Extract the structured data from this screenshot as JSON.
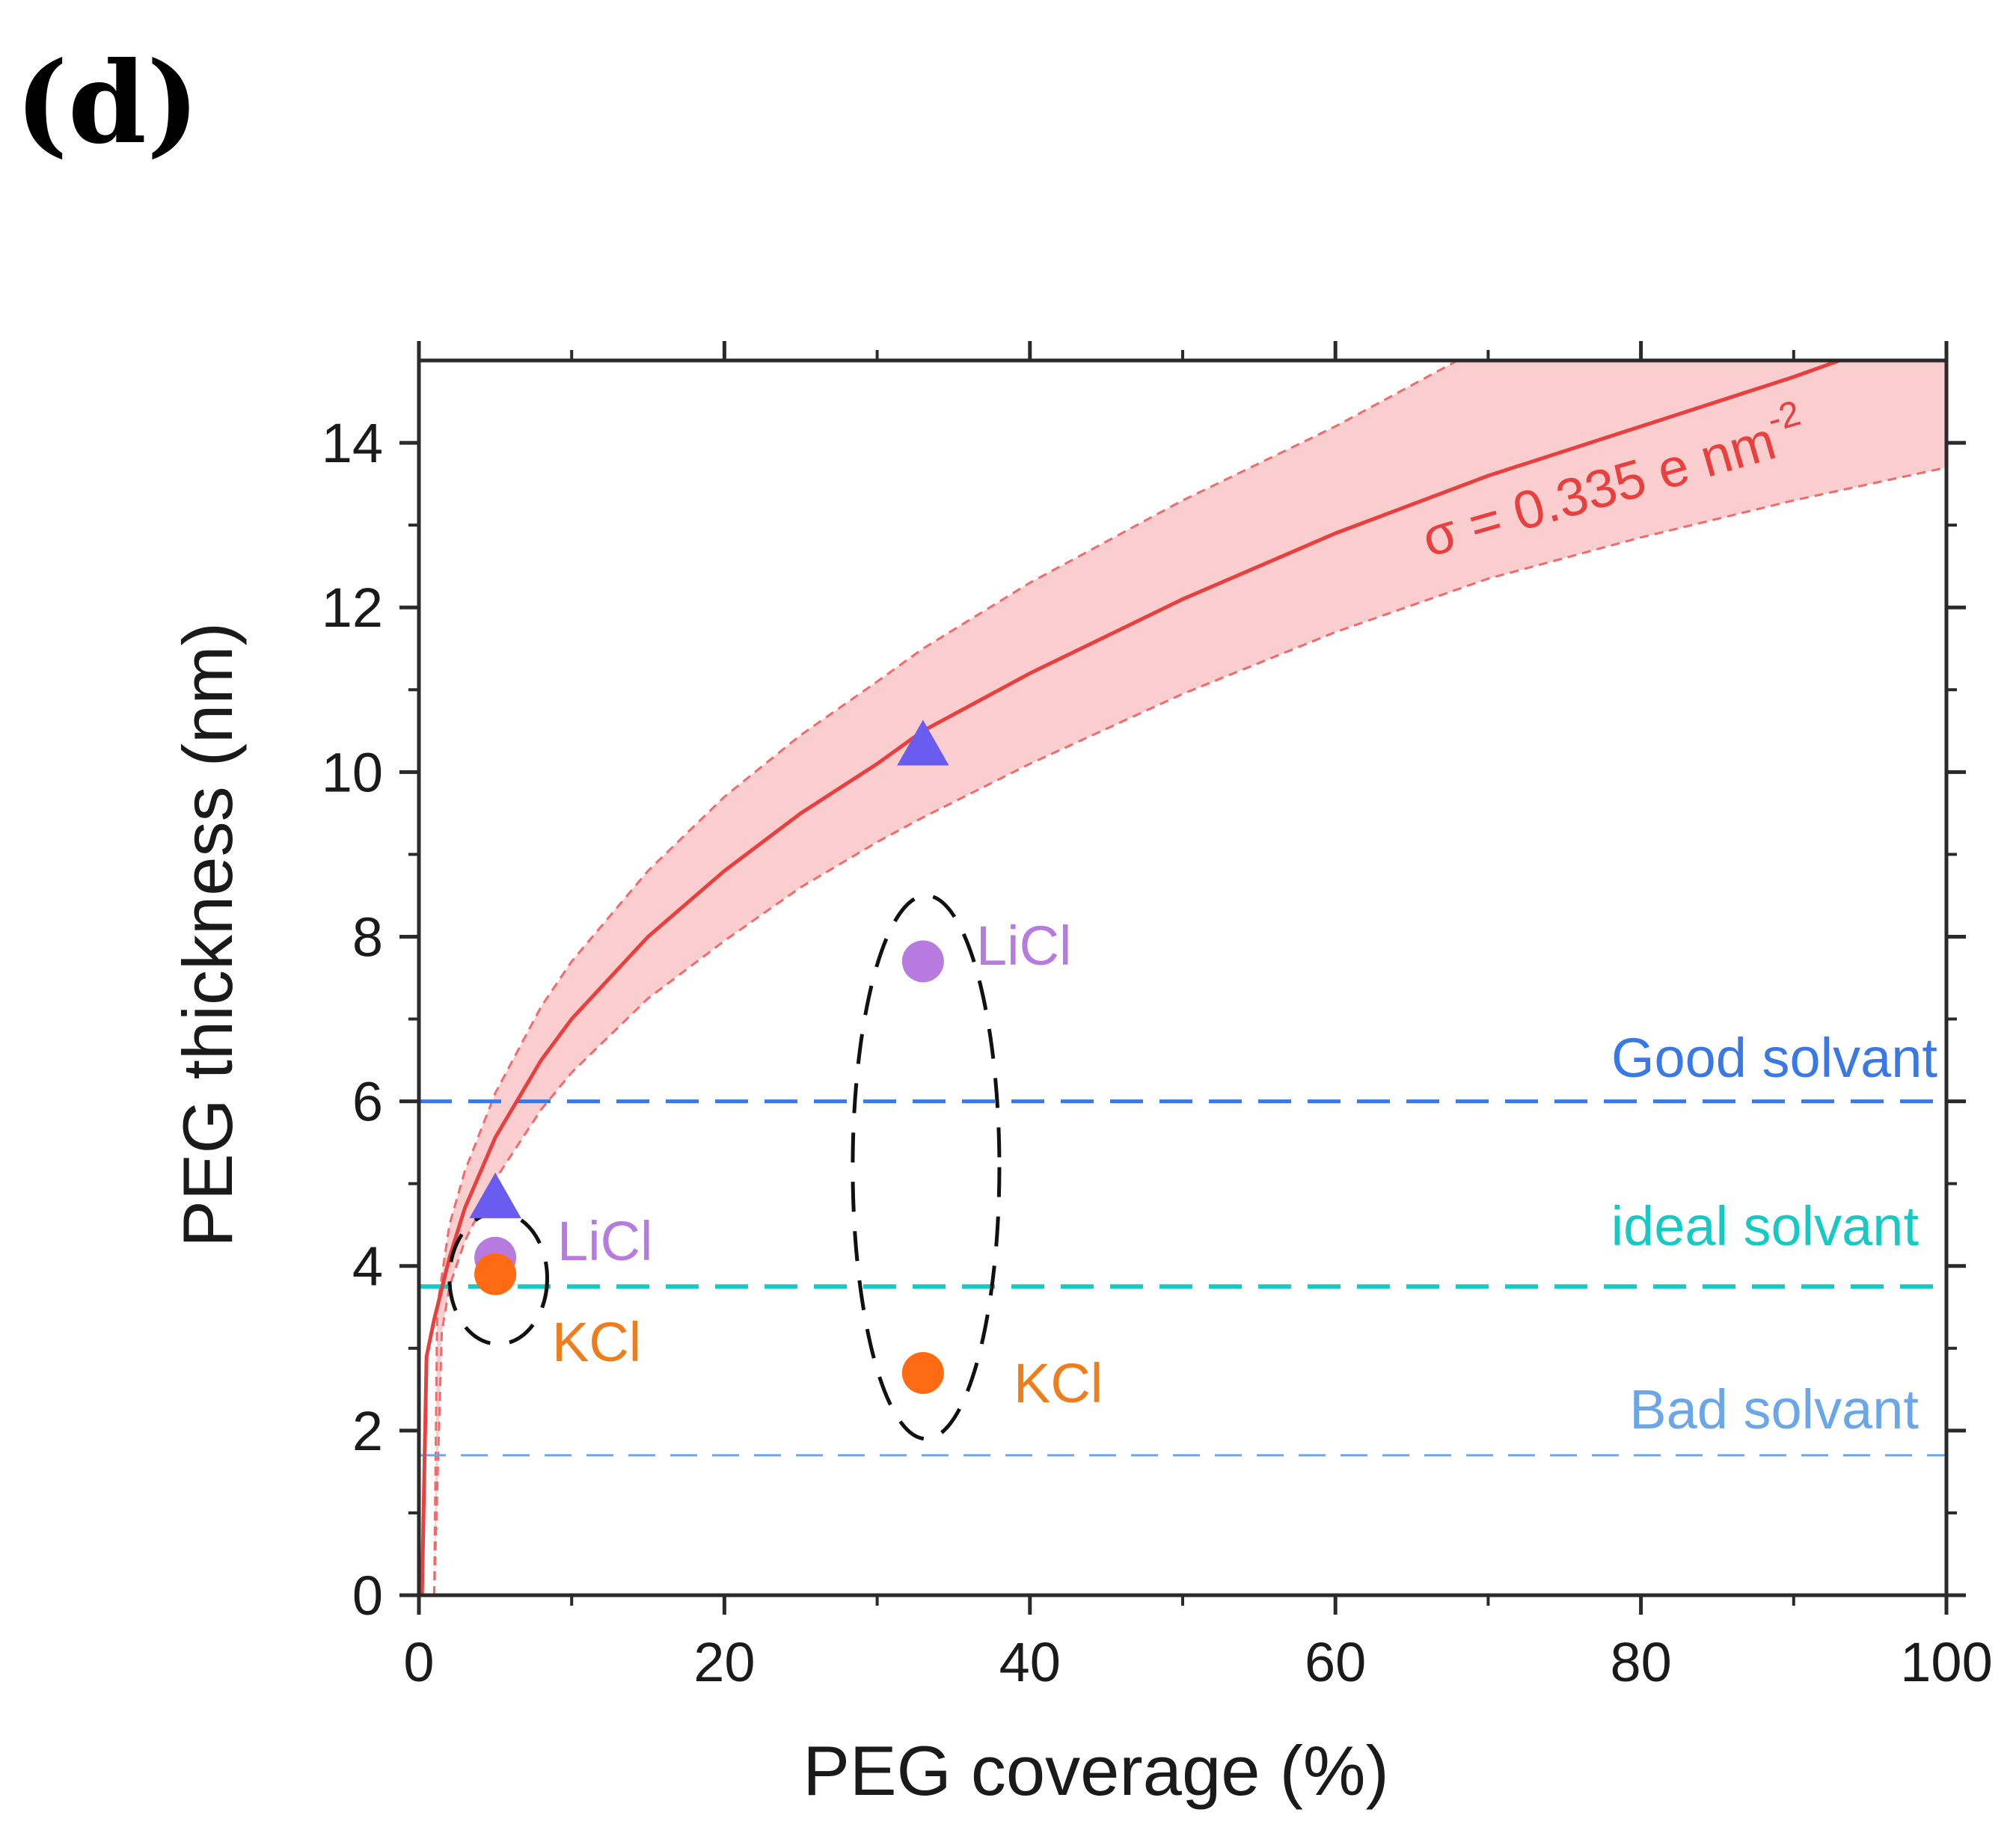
{
  "panel_label": "(d)",
  "colors": {
    "fit_line": "#e8403f",
    "band_fill": "#f9c9c9",
    "band_edge": "#f26a6a",
    "triangle": "#6b5cf0",
    "licl": "#b77be0",
    "kcl": "#ff6a12",
    "kcl_text": "#f07d1c",
    "good": "#3a78e6",
    "ideal": "#17c9c4",
    "bad": "#6aa6e8",
    "axis": "#2a2a2a"
  },
  "chart_data": {
    "type": "scatter",
    "title": "",
    "xlabel": "PEG coverage (%)",
    "ylabel": "PEG thickness (nm)",
    "xlim": [
      0,
      100
    ],
    "ylim": [
      0,
      15
    ],
    "xticks": [
      0,
      20,
      40,
      60,
      80,
      100
    ],
    "yticks": [
      0,
      2,
      4,
      6,
      8,
      10,
      12,
      14
    ],
    "x_minor_step": 10,
    "y_minor_step": 1,
    "grid": false,
    "fit_curve": {
      "label": "σ = 0.335 e nm",
      "label_superscript": "-2",
      "points": [
        [
          0.2,
          0
        ],
        [
          0.5,
          2.9
        ],
        [
          1,
          3.35
        ],
        [
          2,
          4.1
        ],
        [
          3,
          4.7
        ],
        [
          5,
          5.56
        ],
        [
          8,
          6.5
        ],
        [
          10,
          7.0
        ],
        [
          15,
          8.0
        ],
        [
          20,
          8.8
        ],
        [
          25,
          9.5
        ],
        [
          30,
          10.1
        ],
        [
          33,
          10.5
        ],
        [
          40,
          11.2
        ],
        [
          50,
          12.1
        ],
        [
          60,
          12.9
        ],
        [
          70,
          13.6
        ],
        [
          80,
          14.2
        ],
        [
          90,
          14.8
        ],
        [
          93,
          15.0
        ]
      ]
    },
    "fit_band_upper": {
      "points": [
        [
          1,
          0
        ],
        [
          1.2,
          3.5
        ],
        [
          2,
          4.5
        ],
        [
          3,
          5.15
        ],
        [
          5,
          6.1
        ],
        [
          8,
          7.15
        ],
        [
          10,
          7.7
        ],
        [
          15,
          8.8
        ],
        [
          20,
          9.7
        ],
        [
          25,
          10.45
        ],
        [
          30,
          11.1
        ],
        [
          33,
          11.5
        ],
        [
          40,
          12.3
        ],
        [
          50,
          13.3
        ],
        [
          60,
          14.2
        ],
        [
          68,
          15.0
        ]
      ]
    },
    "fit_band_lower": {
      "points": [
        [
          1,
          0
        ],
        [
          1.5,
          3.2
        ],
        [
          2,
          3.75
        ],
        [
          3,
          4.3
        ],
        [
          5,
          5.05
        ],
        [
          8,
          5.9
        ],
        [
          10,
          6.35
        ],
        [
          15,
          7.25
        ],
        [
          20,
          7.95
        ],
        [
          25,
          8.6
        ],
        [
          30,
          9.15
        ],
        [
          33,
          9.45
        ],
        [
          40,
          10.1
        ],
        [
          50,
          10.95
        ],
        [
          60,
          11.7
        ],
        [
          70,
          12.35
        ],
        [
          80,
          12.85
        ],
        [
          90,
          13.3
        ],
        [
          100,
          13.7
        ]
      ]
    },
    "series": [
      {
        "name": "PEG triangles",
        "marker": "triangle",
        "points": [
          [
            5,
            4.8
          ],
          [
            33,
            10.3
          ]
        ]
      },
      {
        "name": "LiCl",
        "marker": "circle",
        "points": [
          [
            5,
            4.1
          ],
          [
            33,
            7.7
          ]
        ]
      },
      {
        "name": "KCl",
        "marker": "circle",
        "points": [
          [
            5,
            3.9
          ],
          [
            33,
            2.7
          ]
        ]
      }
    ],
    "reference_lines": [
      {
        "name": "Good solvant",
        "y": 6.0
      },
      {
        "name": "ideal solvant",
        "y": 3.75
      },
      {
        "name": "Bad solvant",
        "y": 1.7
      }
    ],
    "point_labels": {
      "licl_left": "LiCl",
      "licl_right": "LiCl",
      "kcl_left": "KCl",
      "kcl_right": "KCl"
    },
    "group_ellipses": [
      {
        "cx": 5.2,
        "cy": 3.85,
        "rx": 3.2,
        "ry": 0.8
      },
      {
        "cx": 33.2,
        "cy": 5.2,
        "rx": 4.8,
        "ry": 3.3
      }
    ]
  }
}
